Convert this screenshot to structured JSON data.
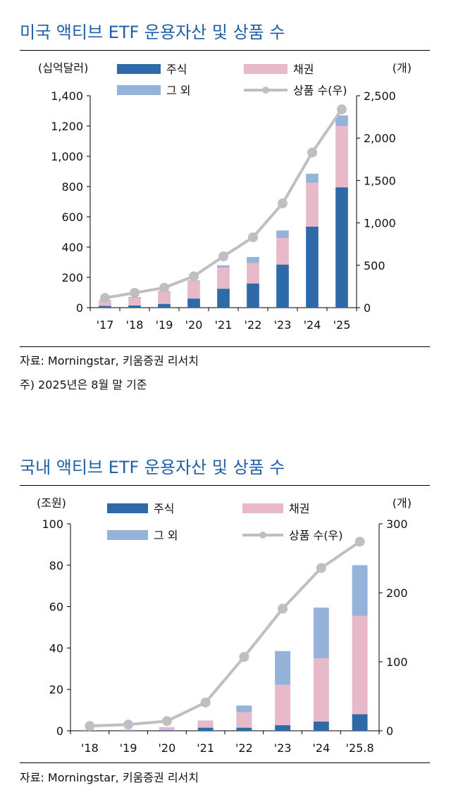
{
  "charts": [
    {
      "title": "미국 액티브 ETF 운용자산 및 상품 수",
      "source": "자료: Morningstar, 키움증권 리서치",
      "footnote": "주) 2025년은 8월 말 기준",
      "left_unit": "(십억달러)",
      "right_unit": "(개)"
    },
    {
      "title": "국내 액티브 ETF 운용자산 및 상품 수",
      "source": "자료: Morningstar, 키움증권 리서치",
      "left_unit": "(조원)",
      "right_unit": "(개)"
    }
  ],
  "chart_data": [
    {
      "type": "bar",
      "title": "미국 액티브 ETF 운용자산 및 상품 수",
      "categories": [
        "'17",
        "'18",
        "'19",
        "'20",
        "'21",
        "'22",
        "'23",
        "'24",
        "'25"
      ],
      "series": [
        {
          "name": "주식",
          "kind": "stacked-bar",
          "axis": "left",
          "color": "#2e6aa8",
          "values": [
            12,
            15,
            25,
            60,
            125,
            160,
            285,
            535,
            795
          ]
        },
        {
          "name": "채권",
          "kind": "stacked-bar",
          "axis": "left",
          "color": "#e8b9c8",
          "values": [
            35,
            50,
            80,
            115,
            140,
            135,
            175,
            290,
            405
          ]
        },
        {
          "name": "그 외",
          "kind": "stacked-bar",
          "axis": "left",
          "color": "#95b3d8",
          "values": [
            3,
            5,
            5,
            5,
            15,
            40,
            50,
            60,
            70
          ]
        },
        {
          "name": "상품 수(우)",
          "kind": "line",
          "axis": "right",
          "color": "#bfbfbf",
          "values": [
            115,
            175,
            235,
            370,
            605,
            830,
            1230,
            1830,
            2340
          ]
        }
      ],
      "left_axis": {
        "unit": "(십억달러)",
        "ylim": [
          0,
          1400
        ],
        "ticks": [
          0,
          200,
          400,
          600,
          800,
          1000,
          1200,
          1400
        ],
        "tick_labels": [
          "0",
          "200",
          "400",
          "600",
          "800",
          "1,000",
          "1,200",
          "1,400"
        ]
      },
      "right_axis": {
        "unit": "(개)",
        "ylim": [
          0,
          2500
        ],
        "ticks": [
          0,
          500,
          1000,
          1500,
          2000,
          2500
        ],
        "tick_labels": [
          "0",
          "500",
          "1,000",
          "1,500",
          "2,000",
          "2,500"
        ]
      },
      "grid": false,
      "legend": "top"
    },
    {
      "type": "bar",
      "title": "국내 액티브 ETF 운용자산 및 상품 수",
      "categories": [
        "'18",
        "'19",
        "'20",
        "'21",
        "'22",
        "'23",
        "'24",
        "'25.8"
      ],
      "series": [
        {
          "name": "주식",
          "kind": "stacked-bar",
          "axis": "left",
          "color": "#2e6aa8",
          "values": [
            0.2,
            0.2,
            0.3,
            1.5,
            1.5,
            2.7,
            4.5,
            8
          ]
        },
        {
          "name": "채권",
          "kind": "stacked-bar",
          "axis": "left",
          "color": "#e8b9c8",
          "values": [
            0.2,
            0.3,
            1.5,
            3.5,
            7.5,
            19.5,
            30.5,
            47.5
          ]
        },
        {
          "name": "그 외",
          "kind": "stacked-bar",
          "axis": "left",
          "color": "#95b3d8",
          "values": [
            0,
            0,
            0,
            0,
            3.2,
            16.3,
            24.5,
            24.5
          ]
        },
        {
          "name": "상품 수(우)",
          "kind": "line",
          "axis": "right",
          "color": "#bfbfbf",
          "values": [
            7,
            9,
            14,
            41,
            107,
            177,
            236,
            274
          ]
        }
      ],
      "left_axis": {
        "unit": "(조원)",
        "ylim": [
          0,
          100
        ],
        "ticks": [
          0,
          20,
          40,
          60,
          80,
          100
        ],
        "tick_labels": [
          "0",
          "20",
          "40",
          "60",
          "80",
          "100"
        ]
      },
      "right_axis": {
        "unit": "(개)",
        "ylim": [
          0,
          300
        ],
        "ticks": [
          0,
          100,
          200,
          300
        ],
        "tick_labels": [
          "0",
          "100",
          "200",
          "300"
        ]
      },
      "grid": false,
      "legend": "top"
    }
  ]
}
